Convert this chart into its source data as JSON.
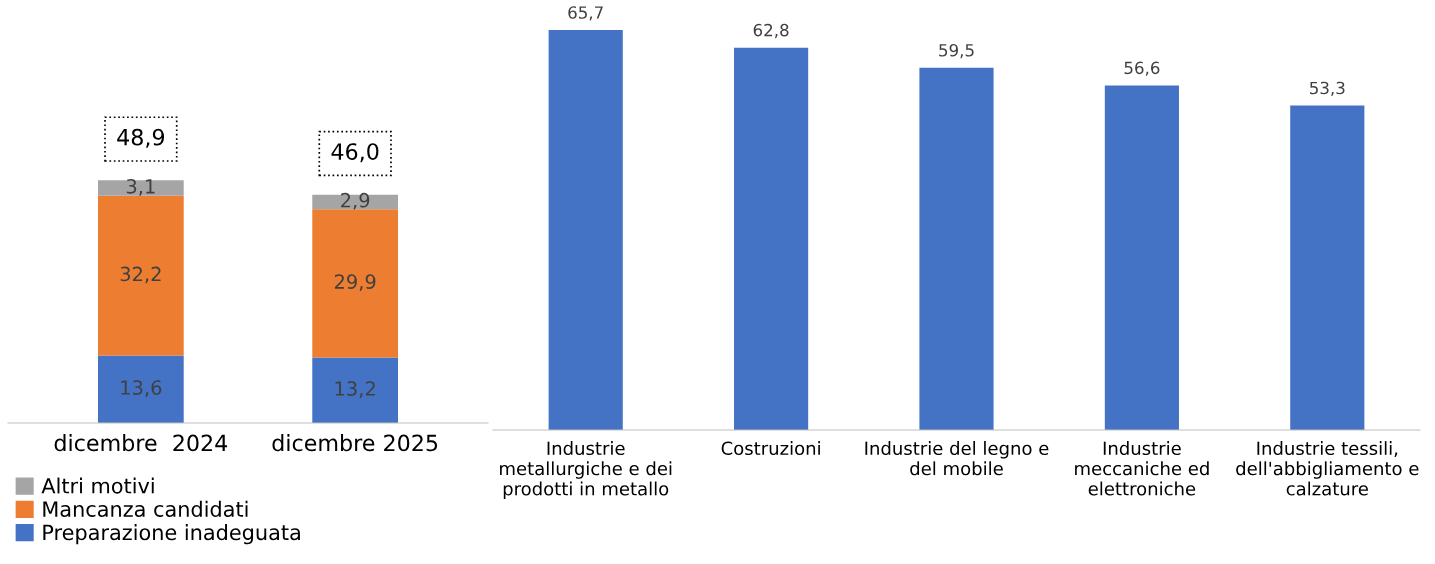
{
  "chart_data": [
    {
      "type": "bar",
      "stacked": true,
      "categories": [
        "dicembre  2024",
        "dicembre 2025"
      ],
      "legend": "bottom",
      "series": [
        {
          "name": "Preparazione inadeguata",
          "color": "#4472c4",
          "values": [
            13.6,
            13.2
          ],
          "value_labels": [
            "13,6",
            "13,2"
          ]
        },
        {
          "name": "Mancanza candidati",
          "color": "#ed7d31",
          "values": [
            32.2,
            29.9
          ],
          "value_labels": [
            "32,2",
            "29,9"
          ]
        },
        {
          "name": "Altri motivi",
          "color": "#a5a5a5",
          "values": [
            3.1,
            2.9
          ],
          "value_labels": [
            "3,1",
            "2,9"
          ]
        }
      ],
      "totals": [
        "48,9",
        "46,0"
      ]
    },
    {
      "type": "bar",
      "categories": [
        "Industrie\nmetallurgiche e dei\nprodotti in metallo",
        "Costruzioni",
        "Industrie del legno e\ndel mobile",
        "Industrie\nmeccaniche ed\nelettroniche",
        "Industrie tessili,\ndell'abbigliamento e\ncalzature"
      ],
      "color": "#4472c4",
      "values": [
        65.7,
        62.8,
        59.5,
        56.6,
        53.3
      ],
      "value_labels": [
        "65,7",
        "62,8",
        "59,5",
        "56,6",
        "53,3"
      ]
    }
  ]
}
